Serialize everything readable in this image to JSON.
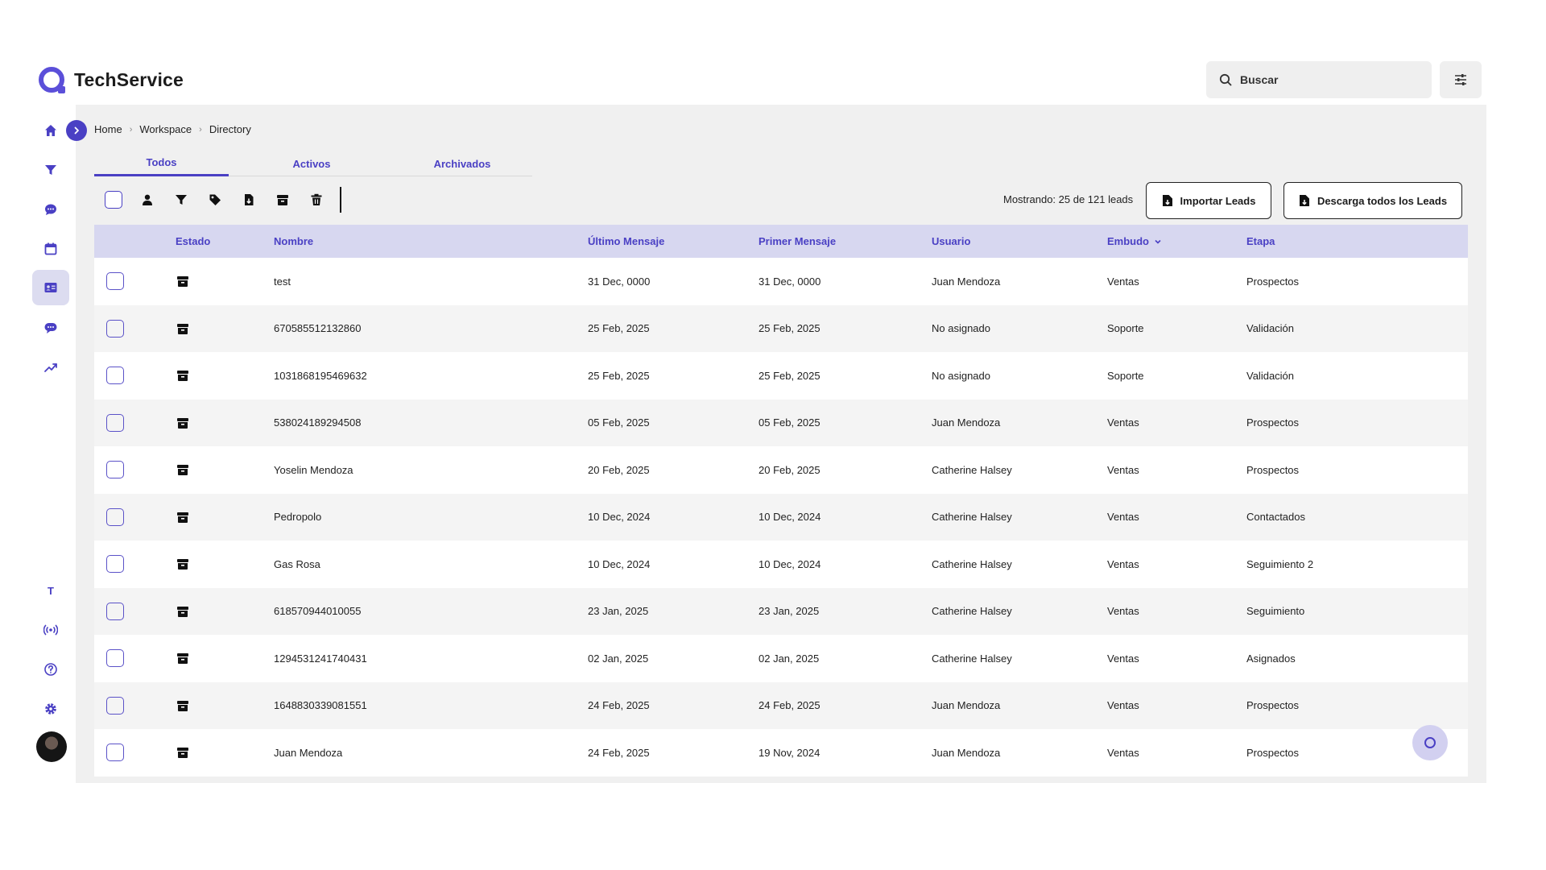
{
  "app": {
    "name": "TechService"
  },
  "search": {
    "placeholder": "Buscar"
  },
  "sidebar": {
    "items": [
      {
        "name": "home-icon"
      },
      {
        "name": "funnel-icon"
      },
      {
        "name": "chat-icon"
      },
      {
        "name": "calendar-icon"
      },
      {
        "name": "contacts-icon",
        "active": true
      },
      {
        "name": "messages-icon"
      },
      {
        "name": "trending-icon"
      },
      {
        "name": "text-icon",
        "label": "T"
      },
      {
        "name": "broadcast-icon"
      },
      {
        "name": "help-icon"
      },
      {
        "name": "settings-icon"
      }
    ]
  },
  "breadcrumb": [
    "Home",
    "Workspace",
    "Directory"
  ],
  "tabs": [
    {
      "label": "Todos",
      "active": true
    },
    {
      "label": "Activos"
    },
    {
      "label": "Archivados"
    }
  ],
  "toolbar": {
    "count_text": "Mostrando: 25 de 121 leads",
    "import_label": "Importar Leads",
    "download_label": "Descarga todos los Leads"
  },
  "table": {
    "columns": [
      "Estado",
      "Nombre",
      "Último Mensaje",
      "Primer Mensaje",
      "Usuario",
      "Embudo",
      "Etapa"
    ],
    "rows": [
      {
        "nombre": "test",
        "ultimo": "31 Dec, 0000",
        "primer": "31 Dec, 0000",
        "usuario": "Juan Mendoza",
        "embudo": "Ventas",
        "etapa": "Prospectos"
      },
      {
        "nombre": "670585512132860",
        "ultimo": "25 Feb, 2025",
        "primer": "25 Feb, 2025",
        "usuario": "No asignado",
        "embudo": "Soporte",
        "etapa": "Validación"
      },
      {
        "nombre": "1031868195469632",
        "ultimo": "25 Feb, 2025",
        "primer": "25 Feb, 2025",
        "usuario": "No asignado",
        "embudo": "Soporte",
        "etapa": "Validación"
      },
      {
        "nombre": "538024189294508",
        "ultimo": "05 Feb, 2025",
        "primer": "05 Feb, 2025",
        "usuario": "Juan Mendoza",
        "embudo": "Ventas",
        "etapa": "Prospectos"
      },
      {
        "nombre": "Yoselin Mendoza",
        "ultimo": "20 Feb, 2025",
        "primer": "20 Feb, 2025",
        "usuario": "Catherine Halsey",
        "embudo": "Ventas",
        "etapa": "Prospectos"
      },
      {
        "nombre": "Pedropolo",
        "ultimo": "10 Dec, 2024",
        "primer": "10 Dec, 2024",
        "usuario": "Catherine Halsey",
        "embudo": "Ventas",
        "etapa": "Contactados"
      },
      {
        "nombre": "Gas Rosa",
        "ultimo": "10 Dec, 2024",
        "primer": "10 Dec, 2024",
        "usuario": "Catherine Halsey",
        "embudo": "Ventas",
        "etapa": "Seguimiento 2"
      },
      {
        "nombre": "618570944010055",
        "ultimo": "23 Jan, 2025",
        "primer": "23 Jan, 2025",
        "usuario": "Catherine Halsey",
        "embudo": "Ventas",
        "etapa": "Seguimiento"
      },
      {
        "nombre": "1294531241740431",
        "ultimo": "02 Jan, 2025",
        "primer": "02 Jan, 2025",
        "usuario": "Catherine Halsey",
        "embudo": "Ventas",
        "etapa": "Asignados"
      },
      {
        "nombre": "1648830339081551",
        "ultimo": "24 Feb, 2025",
        "primer": "24 Feb, 2025",
        "usuario": "Juan Mendoza",
        "embudo": "Ventas",
        "etapa": "Prospectos"
      },
      {
        "nombre": "Juan Mendoza",
        "ultimo": "24 Feb, 2025",
        "primer": "19 Nov, 2024",
        "usuario": "Juan Mendoza",
        "embudo": "Ventas",
        "etapa": "Prospectos"
      }
    ]
  },
  "colors": {
    "accent": "#4a40c4",
    "header_bg": "#d7d7f0",
    "panel_bg": "#f0f0f0"
  }
}
